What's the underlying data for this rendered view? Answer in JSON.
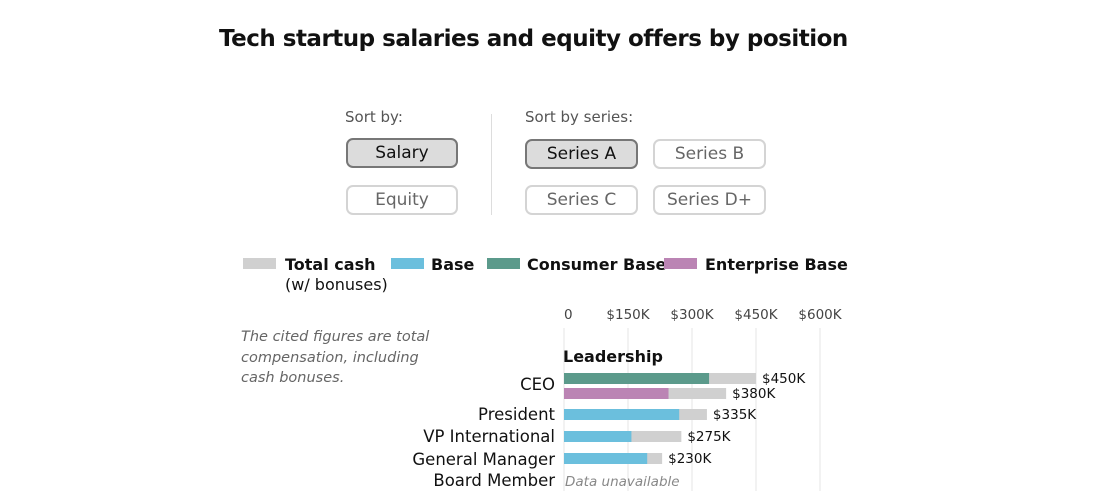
{
  "title": "Tech startup salaries and equity offers by position",
  "controls": {
    "sort_by_label": "Sort by:",
    "sort_by_options": [
      "Salary",
      "Equity"
    ],
    "sort_by_selected": "Salary",
    "sort_series_label": "Sort by series:",
    "series_options": [
      "Series A",
      "Series B",
      "Series C",
      "Series D+"
    ],
    "series_selected": "Series A"
  },
  "legend": {
    "total_cash": "Total cash",
    "total_cash_sub": "(w/ bonuses)",
    "base": "Base",
    "consumer_base": "Consumer Base",
    "enterprise_base": "Enterprise Base"
  },
  "note": "The cited figures are total compensation, including cash bonuses.",
  "colors": {
    "total_cash": "#d0d0d0",
    "base": "#6bbfdd",
    "consumer_base": "#5b9a8b",
    "enterprise_base": "#bb84b4",
    "gridline": "#e6e6e6"
  },
  "chart_data": {
    "type": "bar",
    "orientation": "horizontal",
    "xlim": [
      0,
      600000
    ],
    "x_ticks": [
      0,
      150000,
      300000,
      450000,
      600000
    ],
    "x_tick_labels": [
      "0",
      "$150K",
      "$300K",
      "$450K",
      "$600K"
    ],
    "group": "Leadership",
    "unavailable_label": "Data unavailable",
    "rows": [
      {
        "label": "CEO",
        "bars": [
          {
            "series": "consumer_base",
            "base": 340000,
            "total": 450000,
            "total_label": "$450K"
          },
          {
            "series": "enterprise_base",
            "base": 245000,
            "total": 380000,
            "total_label": "$380K"
          }
        ]
      },
      {
        "label": "President",
        "bars": [
          {
            "series": "base",
            "base": 270000,
            "total": 335000,
            "total_label": "$335K"
          }
        ]
      },
      {
        "label": "VP International",
        "bars": [
          {
            "series": "base",
            "base": 158000,
            "total": 275000,
            "total_label": "$275K"
          }
        ]
      },
      {
        "label": "General Manager",
        "bars": [
          {
            "series": "base",
            "base": 195000,
            "total": 230000,
            "total_label": "$230K"
          }
        ]
      },
      {
        "label": "Board Member",
        "bars": []
      }
    ]
  }
}
